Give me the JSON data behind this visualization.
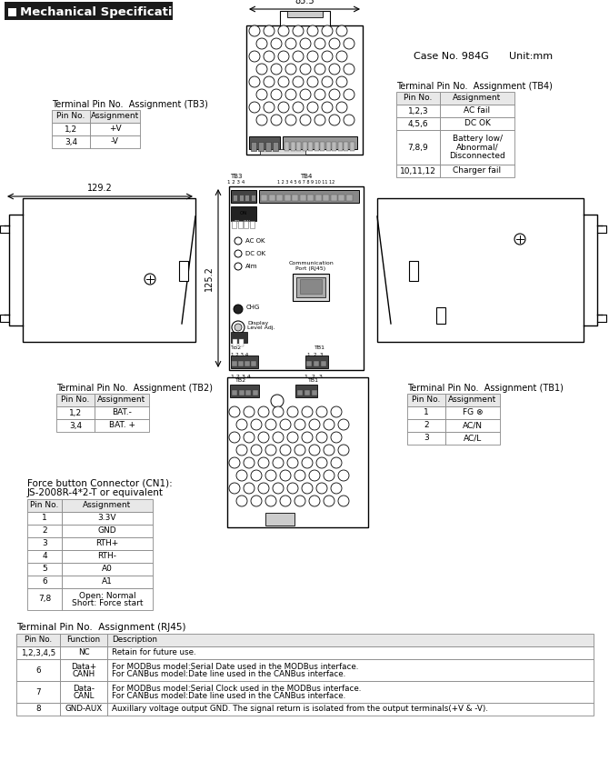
{
  "title": "Mechanical Specification",
  "case_info": "Case No. 984G",
  "case_unit": "Unit:mm",
  "dim_width": "85.5",
  "dim_height": "129.2",
  "dim_side": "125.2",
  "tb3_title": "Terminal Pin No.  Assignment (TB3)",
  "tb3_headers": [
    "Pin No.",
    "Assignment"
  ],
  "tb3_rows": [
    [
      "1,2",
      "+V"
    ],
    [
      "3,4",
      "-V"
    ]
  ],
  "tb4_title": "Terminal Pin No.  Assignment (TB4)",
  "tb4_headers": [
    "Pin No.",
    "Assignment"
  ],
  "tb4_rows": [
    [
      "1,2,3",
      "AC fail"
    ],
    [
      "4,5,6",
      "DC OK"
    ],
    [
      "7,8,9",
      "Battery low/\nAbnormal/\nDisconnected"
    ],
    [
      "10,11,12",
      "Charger fail"
    ]
  ],
  "tb2_title": "Terminal Pin No.  Assignment (TB2)",
  "tb2_headers": [
    "Pin No.",
    "Assignment"
  ],
  "tb2_rows": [
    [
      "1,2",
      "BAT.-"
    ],
    [
      "3,4",
      "BAT. +"
    ]
  ],
  "tb1_title": "Terminal Pin No.  Assignment (TB1)",
  "tb1_headers": [
    "Pin No.",
    "Assignment"
  ],
  "tb1_rows": [
    [
      "1",
      "FG ⊗"
    ],
    [
      "2",
      "AC/N"
    ],
    [
      "3",
      "AC/L"
    ]
  ],
  "cn1_title": "Force button Connector (CN1):",
  "cn1_subtitle": "JS-2008R-4*2-T or equivalent",
  "cn1_headers": [
    "Pin No.",
    "Assignment"
  ],
  "cn1_rows": [
    [
      "1",
      "3.3V"
    ],
    [
      "2",
      "GND"
    ],
    [
      "3",
      "RTH+"
    ],
    [
      "4",
      "RTH-"
    ],
    [
      "5",
      "A0"
    ],
    [
      "6",
      "A1"
    ],
    [
      "7,8",
      "Open: Normal\nShort: Force start"
    ]
  ],
  "rj45_title": "Terminal Pin No.  Assignment (RJ45)",
  "rj45_headers": [
    "Pin No.",
    "Function",
    "Description"
  ],
  "rj45_rows": [
    [
      "1,2,3,4,5",
      "NC",
      "Retain for future use."
    ],
    [
      "6",
      "Data+\nCANH",
      "For MODBus model:Serial Date used in the MODBus interface.\nFor CANBus model:Date line used in the CANBus interface."
    ],
    [
      "7",
      "Data-\nCANL",
      "For MODBus model:Serial Clock used in the MODBus interface.\nFor CANBus model:Date line used in the CANBus interface."
    ],
    [
      "8",
      "GND-AUX",
      "Auxillary voltage output GND. The signal return is isolated from the output terminals(+V & -V)."
    ]
  ],
  "bg_color": "#ffffff",
  "line_color": "#000000",
  "table_line_color": "#888888"
}
